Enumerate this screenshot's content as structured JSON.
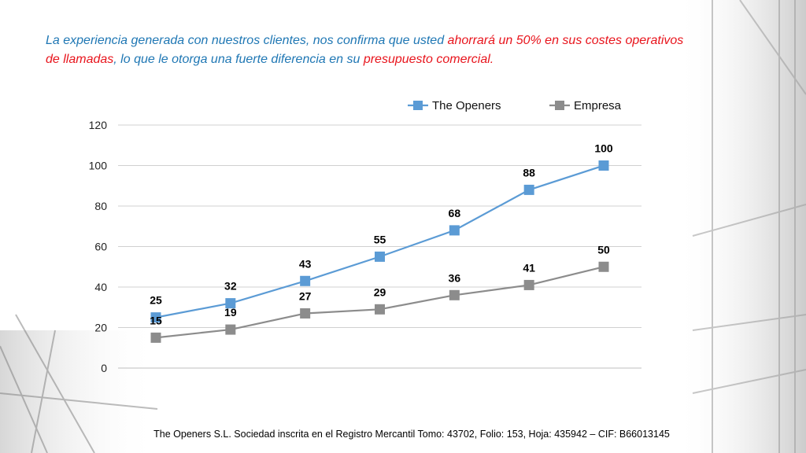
{
  "slide": {
    "headline_parts": [
      {
        "text": "La experiencia generada con nuestros clientes, nos confirma que usted ",
        "color": "blue"
      },
      {
        "text": "ahorrará un 50% en sus costes operativos de llamadas",
        "color": "red"
      },
      {
        "text": ", lo que le otorga una fuerte diferencia en su ",
        "color": "blue"
      },
      {
        "text": "presupuesto comercial.",
        "color": "red"
      }
    ],
    "footer": "The Openers S.L. Sociedad inscrita en el Registro Mercantil Tomo: 43702, Folio: 153, Hoja: 435942 – CIF: B66013145"
  },
  "colors": {
    "blue": "#1f77b4",
    "red": "#e8141c",
    "series_openers": "#5b9bd5",
    "series_empresa": "#8c8c8c",
    "grid": "#d0d0d0"
  },
  "chart_data": {
    "type": "line",
    "x": [
      1,
      2,
      3,
      4,
      5,
      6,
      7
    ],
    "series": [
      {
        "name": "The Openers",
        "values": [
          25,
          32,
          43,
          55,
          68,
          88,
          100
        ],
        "color": "#5b9bd5",
        "marker": "square"
      },
      {
        "name": "Empresa",
        "values": [
          15,
          19,
          27,
          29,
          36,
          41,
          50
        ],
        "color": "#8c8c8c",
        "marker": "square"
      }
    ],
    "ylim": [
      0,
      120
    ],
    "yticks": [
      0,
      20,
      40,
      60,
      80,
      100,
      120
    ],
    "grid": true,
    "legend": "top-right",
    "data_labels": true
  }
}
